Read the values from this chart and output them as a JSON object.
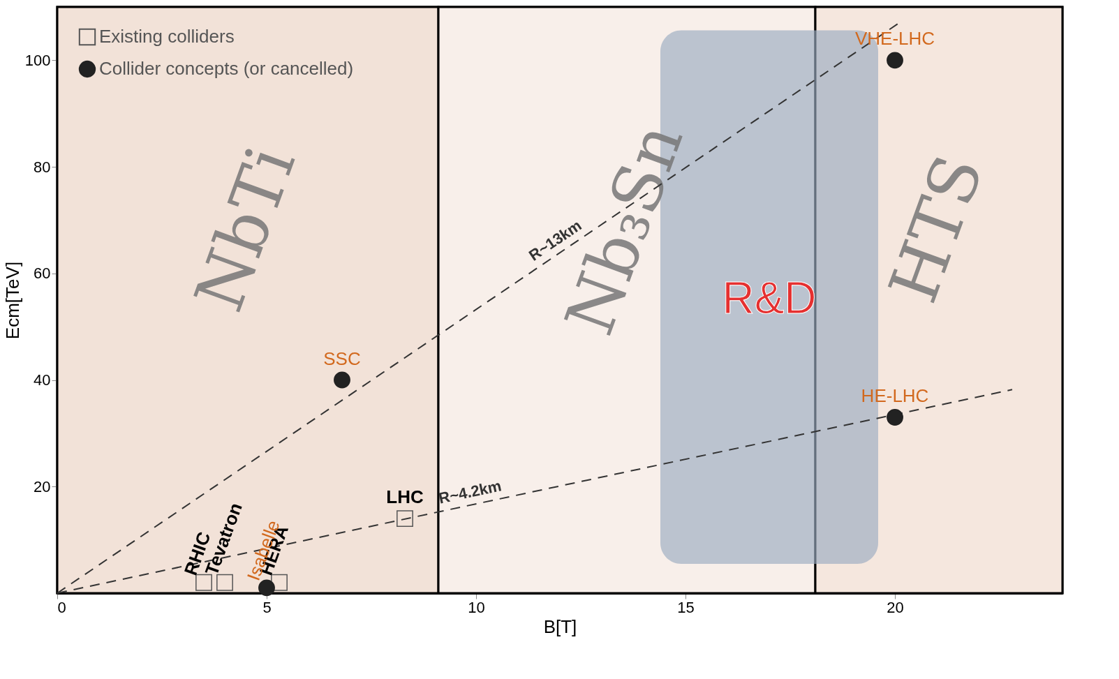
{
  "chart_data": {
    "type": "scatter",
    "xlabel": "B[T]",
    "ylabel": "Ecm[TeV]",
    "xlim": [
      0,
      24
    ],
    "ylim": [
      0,
      110
    ],
    "xticks": [
      0,
      5,
      10,
      15,
      20
    ],
    "yticks": [
      20,
      40,
      60,
      80,
      100
    ],
    "legend": "top left",
    "bands": [
      {
        "axis": "x",
        "from": 0,
        "to": 9.1,
        "label": "NbTi",
        "color": "#f2e2d8"
      },
      {
        "axis": "x",
        "from": 9.1,
        "to": 18.1,
        "label": "Nb₃Sn",
        "color": "#f8efea"
      },
      {
        "axis": "x",
        "from": 18.1,
        "to": 24,
        "label": "HTS",
        "color": "#f5e7de"
      },
      {
        "axis": "x",
        "from": 14.4,
        "to": 19.6,
        "label": "R&D",
        "color": "#9aaac0"
      }
    ],
    "series": [
      {
        "name": "R~13km",
        "type": "line",
        "line_style": "dashed",
        "color": "#333333",
        "x": [
          0,
          20.1
        ],
        "values": [
          0,
          107
        ]
      },
      {
        "name": "R~4.2km",
        "type": "line",
        "line_style": "dashed",
        "color": "#333333",
        "x": [
          0,
          22.8
        ],
        "values": [
          0,
          38.2
        ]
      },
      {
        "name": "Existing colliders",
        "marker": "square",
        "color": "#555555",
        "x": [
          3.5,
          4.0,
          5.3,
          8.3
        ],
        "values": [
          2,
          2,
          2,
          14
        ],
        "value_labels": [
          "RHIC",
          "Tevatron",
          "HERA",
          "LHC"
        ]
      },
      {
        "name": "Collider concepts (or cancelled)",
        "marker": "circle",
        "color": "#222222",
        "x": [
          5.0,
          6.8,
          20,
          20
        ],
        "values": [
          1,
          40,
          100,
          33
        ],
        "value_labels": [
          "Isabelle",
          "SSC",
          "VHE-LHC",
          "HE-LHC"
        ]
      }
    ]
  }
}
